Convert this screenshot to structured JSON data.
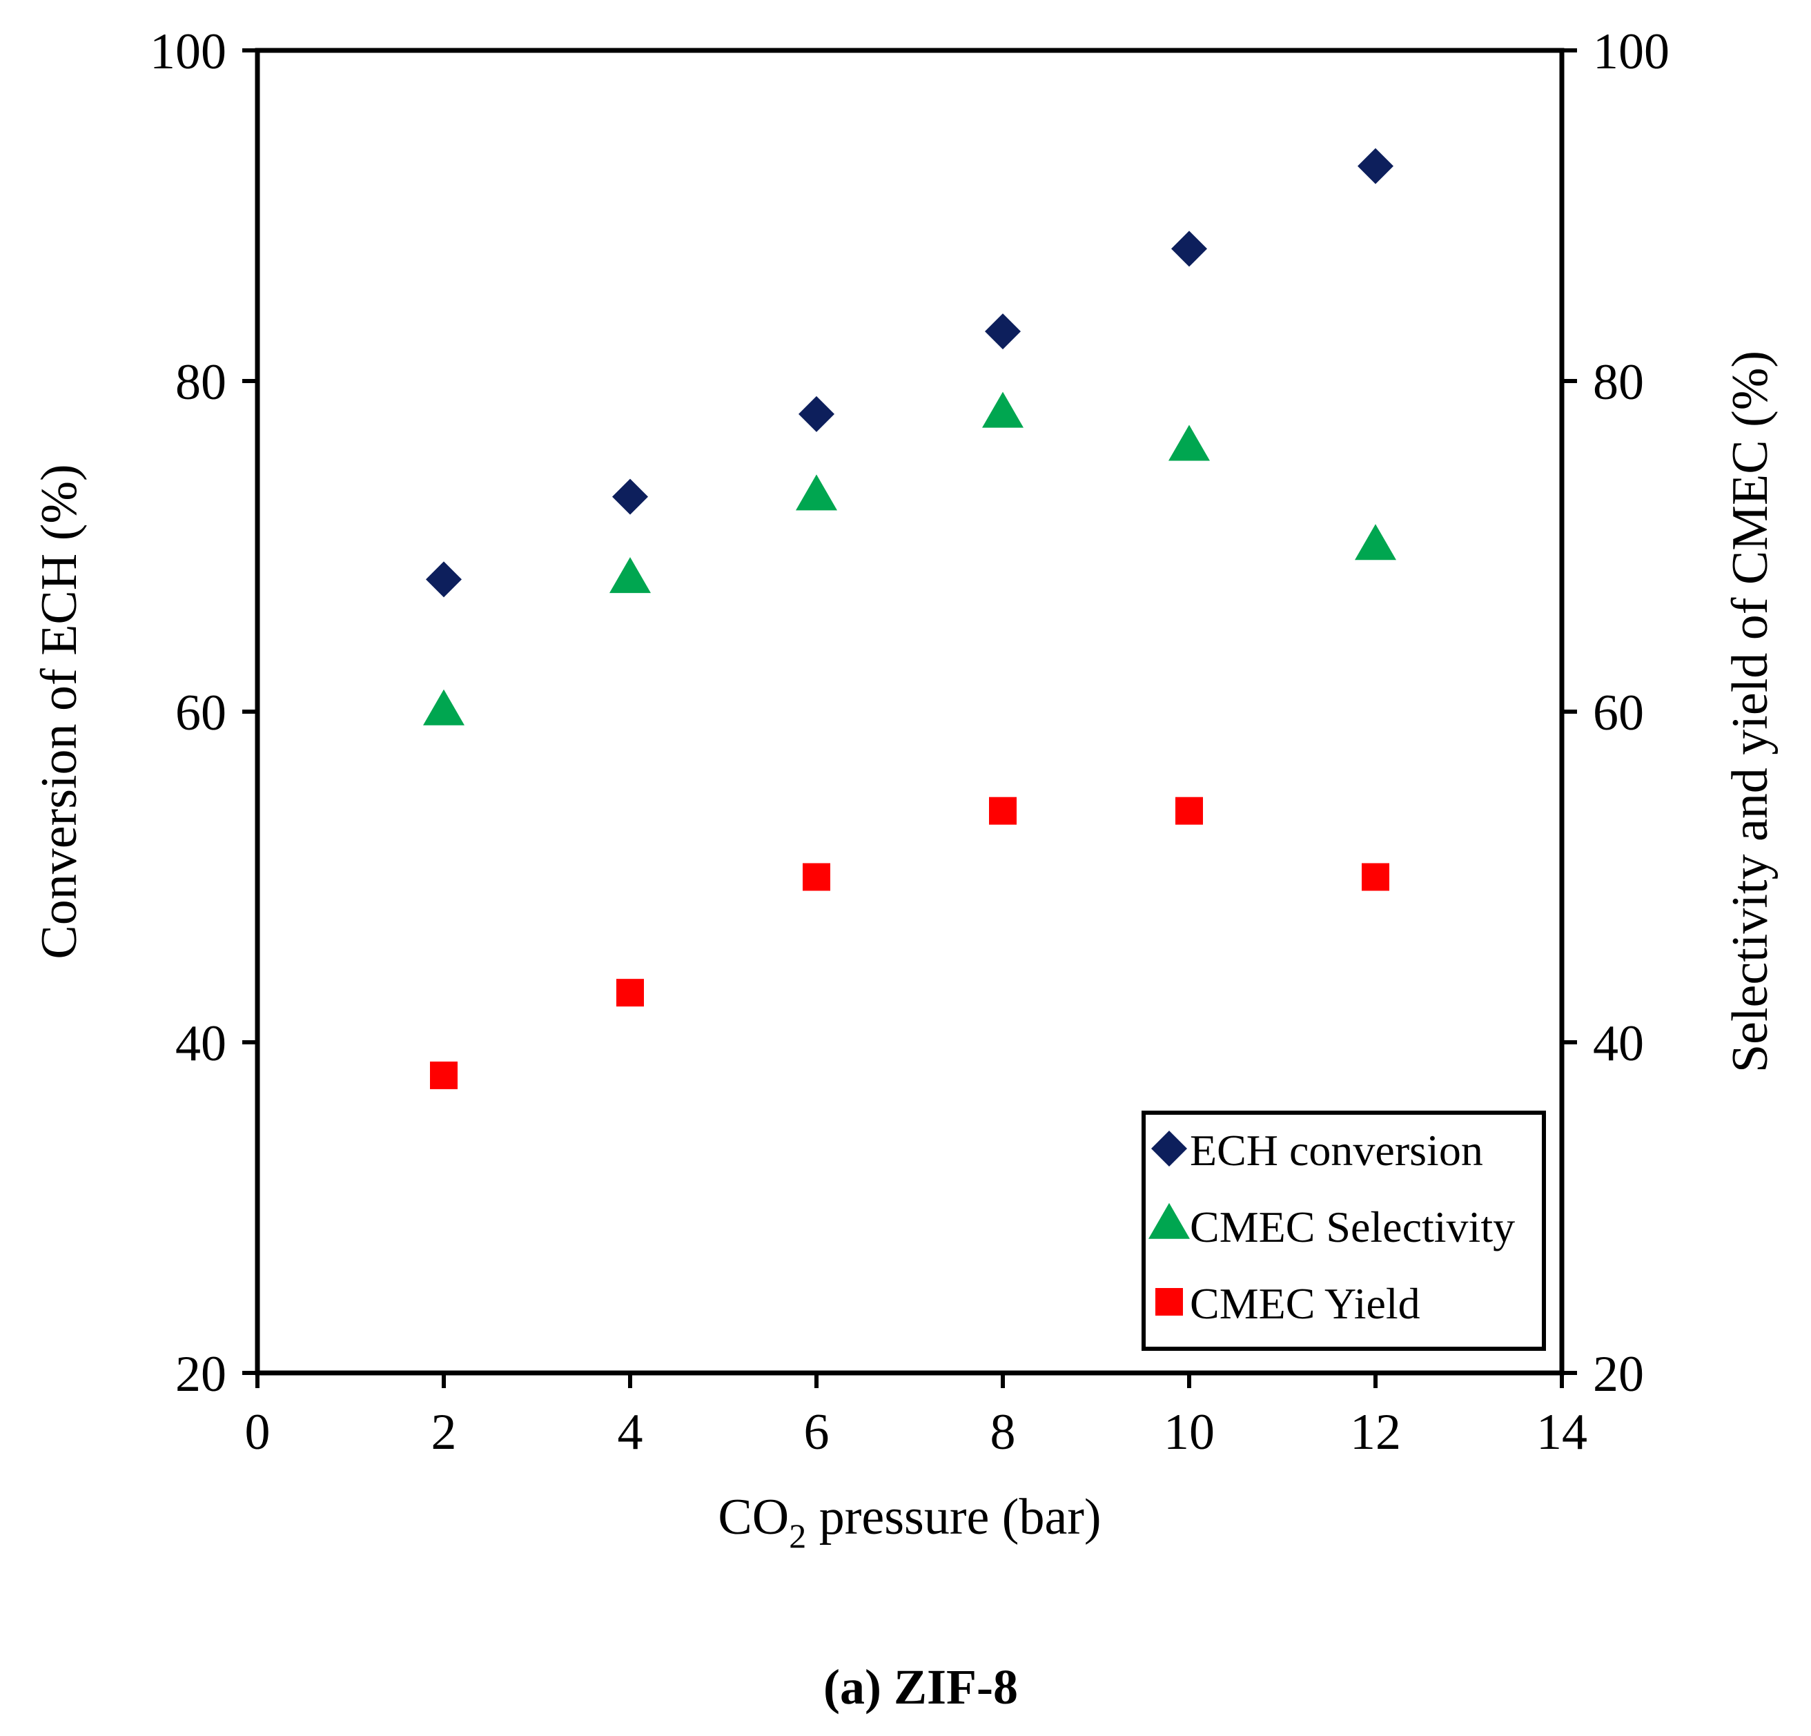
{
  "chart_data": {
    "type": "scatter",
    "caption": "(a) ZIF-8",
    "xlabel": "CO2 pressure (bar)",
    "xlabel_parts": {
      "prefix": "CO",
      "subscript": "2",
      "suffix": " pressure (bar)"
    },
    "ylabel_left": "Conversion of ECH (%)",
    "ylabel_right": "Selectivity and yield of CMEC (%)",
    "xlim": [
      0,
      14
    ],
    "ylim_left": [
      20,
      100
    ],
    "ylim_right": [
      20,
      100
    ],
    "x_ticks": [
      "0",
      "2",
      "4",
      "6",
      "8",
      "10",
      "12",
      "14"
    ],
    "y_ticks_left": [
      "20",
      "40",
      "60",
      "80",
      "100"
    ],
    "y_ticks_right": [
      "20",
      "40",
      "60",
      "80",
      "100"
    ],
    "grid": false,
    "legend_position": "bottom-right",
    "x": [
      2,
      4,
      6,
      8,
      10,
      12
    ],
    "series": [
      {
        "name": "ECH conversion",
        "marker": "diamond",
        "color": "#0d1f5c",
        "axis": "left",
        "values": [
          68,
          73,
          78,
          83,
          88,
          93
        ]
      },
      {
        "name": "CMEC Selectivity",
        "marker": "triangle",
        "color": "#00a650",
        "axis": "right",
        "values": [
          60,
          68,
          73,
          78,
          76,
          70
        ]
      },
      {
        "name": "CMEC Yield",
        "marker": "square",
        "color": "#ff0000",
        "axis": "right",
        "values": [
          38,
          43,
          50,
          54,
          54,
          50
        ]
      }
    ]
  }
}
